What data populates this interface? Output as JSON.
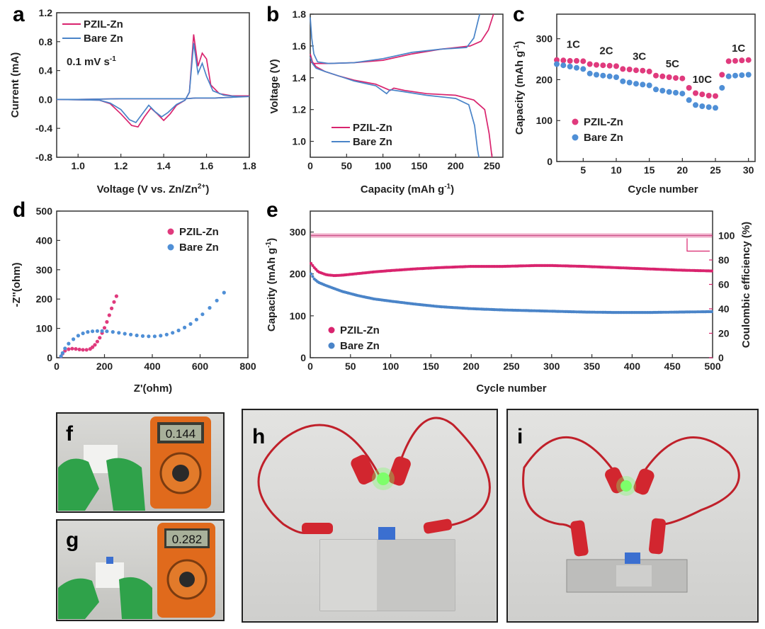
{
  "figure": {
    "panel_labels": [
      "a",
      "b",
      "c",
      "d",
      "e",
      "f",
      "g",
      "h",
      "i"
    ]
  },
  "colors": {
    "pzil": "#d9246e",
    "bare": "#4a84c8",
    "ce": "#d9246e"
  },
  "photos": {
    "f": {
      "meter_reading": "0.144",
      "description_icon": "multimeter-icon"
    },
    "g": {
      "meter_reading": "0.282",
      "description_icon": "multimeter-icon"
    },
    "h": {
      "icon": "pouch-cell-led-icon"
    },
    "i": {
      "icon": "folded-cell-led-icon"
    }
  },
  "chart_data": [
    {
      "id": "a",
      "type": "line",
      "xlabel": "Voltage (V vs. Zn/Zn",
      "xlabel_sup": "2+",
      "xlabel_end": ")",
      "ylabel": "Current (mA)",
      "annotation": "0.1 mV s",
      "annotation_sup": "-1",
      "xlim": [
        0.9,
        1.8
      ],
      "ylim": [
        -0.8,
        1.2
      ],
      "xticks": [
        "1.0",
        "1.2",
        "1.4",
        "1.6",
        "1.8"
      ],
      "yticks": [
        "-0.8",
        "-0.4",
        "0.0",
        "0.4",
        "0.8",
        "1.2"
      ],
      "xtick_values": [
        1.0,
        1.2,
        1.4,
        1.6,
        1.8
      ],
      "ytick_values": [
        -0.8,
        -0.4,
        0.0,
        0.4,
        0.8,
        1.2
      ],
      "series": [
        {
          "name": "PZIL-Zn",
          "color": "#d9246e",
          "x": [
            0.9,
            1.1,
            1.15,
            1.2,
            1.25,
            1.28,
            1.31,
            1.34,
            1.37,
            1.4,
            1.43,
            1.46,
            1.5,
            1.52,
            1.54,
            1.56,
            1.58,
            1.6,
            1.62,
            1.66,
            1.72,
            1.8,
            1.72,
            1.64,
            1.6,
            1.55,
            1.5,
            1.4,
            1.2,
            1.0,
            0.9
          ],
          "y": [
            0.0,
            -0.01,
            -0.06,
            -0.2,
            -0.36,
            -0.38,
            -0.24,
            -0.12,
            -0.2,
            -0.29,
            -0.2,
            -0.08,
            -0.01,
            0.1,
            0.9,
            0.46,
            0.64,
            0.56,
            0.2,
            0.08,
            0.05,
            0.05,
            0.03,
            0.02,
            0.02,
            0.02,
            0.01,
            0.01,
            0.01,
            0.0,
            0.0
          ]
        },
        {
          "name": "Bare Zn",
          "color": "#4a84c8",
          "x": [
            0.9,
            1.1,
            1.15,
            1.2,
            1.24,
            1.27,
            1.3,
            1.33,
            1.36,
            1.39,
            1.42,
            1.46,
            1.5,
            1.52,
            1.54,
            1.56,
            1.58,
            1.6,
            1.63,
            1.68,
            1.74,
            1.8,
            1.72,
            1.64,
            1.6,
            1.55,
            1.5,
            1.4,
            1.2,
            1.0,
            0.9
          ],
          "y": [
            0.0,
            -0.01,
            -0.05,
            -0.14,
            -0.28,
            -0.32,
            -0.2,
            -0.08,
            -0.17,
            -0.24,
            -0.18,
            -0.07,
            -0.01,
            0.1,
            0.78,
            0.36,
            0.5,
            0.32,
            0.12,
            0.06,
            0.04,
            0.04,
            0.03,
            0.02,
            0.02,
            0.02,
            0.01,
            0.01,
            0.01,
            0.0,
            0.0
          ]
        }
      ]
    },
    {
      "id": "b",
      "type": "line",
      "xlabel": "Capacity (mAh g",
      "xlabel_sup": "-1",
      "xlabel_end": ")",
      "ylabel": "Voltage (V)",
      "xlim": [
        0,
        265
      ],
      "ylim": [
        0.9,
        1.8
      ],
      "xticks": [
        "0",
        "50",
        "100",
        "150",
        "200",
        "250"
      ],
      "yticks": [
        "1.0",
        "1.2",
        "1.4",
        "1.6",
        "1.8"
      ],
      "xtick_values": [
        0,
        50,
        100,
        150,
        200,
        250
      ],
      "ytick_values": [
        1.0,
        1.2,
        1.4,
        1.6,
        1.8
      ],
      "series": [
        {
          "name": "PZIL-Zn",
          "color": "#d9246e",
          "charge_x": [
            0,
            5,
            25,
            60,
            100,
            140,
            180,
            220,
            235,
            245,
            252
          ],
          "charge_y": [
            1.5,
            1.49,
            1.49,
            1.495,
            1.51,
            1.55,
            1.58,
            1.6,
            1.63,
            1.7,
            1.8
          ],
          "discharge_x": [
            0,
            3,
            8,
            20,
            40,
            60,
            90,
            110,
            115,
            130,
            160,
            200,
            225,
            240,
            246,
            250
          ],
          "discharge_y": [
            1.55,
            1.5,
            1.47,
            1.44,
            1.41,
            1.385,
            1.36,
            1.32,
            1.335,
            1.32,
            1.3,
            1.29,
            1.26,
            1.2,
            1.05,
            0.9
          ]
        },
        {
          "name": "Bare Zn",
          "color": "#4a84c8",
          "charge_x": [
            0,
            2,
            5,
            10,
            25,
            60,
            100,
            140,
            180,
            215,
            225,
            233
          ],
          "charge_y": [
            1.78,
            1.65,
            1.55,
            1.5,
            1.49,
            1.495,
            1.52,
            1.56,
            1.58,
            1.59,
            1.65,
            1.8
          ],
          "discharge_x": [
            0,
            3,
            8,
            20,
            40,
            60,
            90,
            105,
            110,
            125,
            160,
            200,
            218,
            226,
            230,
            232
          ],
          "discharge_y": [
            1.53,
            1.49,
            1.46,
            1.44,
            1.41,
            1.38,
            1.35,
            1.3,
            1.325,
            1.315,
            1.29,
            1.27,
            1.23,
            1.1,
            0.95,
            0.9
          ]
        }
      ]
    },
    {
      "id": "c",
      "type": "scatter",
      "xlabel": "Cycle number",
      "ylabel": "Capacity (mAh g",
      "ylabel_sup": "-1",
      "ylabel_end": ")",
      "xlim": [
        1,
        31
      ],
      "ylim": [
        0,
        360
      ],
      "xticks": [
        "5",
        "10",
        "15",
        "20",
        "25",
        "30"
      ],
      "yticks": [
        "0",
        "100",
        "200",
        "300"
      ],
      "xtick_values": [
        5,
        10,
        15,
        20,
        25,
        30
      ],
      "ytick_values": [
        0,
        100,
        200,
        300
      ],
      "rate_labels": [
        {
          "text": "1C",
          "x": 3.5,
          "y": 278
        },
        {
          "text": "2C",
          "x": 8.5,
          "y": 262
        },
        {
          "text": "3C",
          "x": 13.5,
          "y": 248
        },
        {
          "text": "5C",
          "x": 18.5,
          "y": 230
        },
        {
          "text": "10C",
          "x": 23.0,
          "y": 192
        },
        {
          "text": "1C",
          "x": 28.5,
          "y": 268
        }
      ],
      "x": [
        1,
        2,
        3,
        4,
        5,
        6,
        7,
        8,
        9,
        10,
        11,
        12,
        13,
        14,
        15,
        16,
        17,
        18,
        19,
        20,
        21,
        22,
        23,
        24,
        25,
        26,
        27,
        28,
        29,
        30
      ],
      "series": [
        {
          "name": "PZIL-Zn",
          "color": "#e03a7d",
          "values": [
            248,
            247,
            246,
            246,
            245,
            238,
            236,
            235,
            234,
            233,
            226,
            225,
            223,
            222,
            220,
            210,
            208,
            206,
            204,
            203,
            180,
            167,
            164,
            161,
            160,
            212,
            245,
            246,
            247,
            248
          ]
        },
        {
          "name": "Bare Zn",
          "color": "#4f8fd6",
          "values": [
            238,
            235,
            232,
            229,
            226,
            215,
            212,
            210,
            208,
            206,
            196,
            193,
            190,
            188,
            186,
            176,
            173,
            170,
            168,
            166,
            150,
            138,
            135,
            133,
            131,
            180,
            208,
            210,
            211,
            212
          ]
        }
      ]
    },
    {
      "id": "d",
      "type": "scatter",
      "xlabel": "Z'(ohm)",
      "ylabel": "-Z''(ohm)",
      "xlim": [
        0,
        800
      ],
      "ylim": [
        0,
        500
      ],
      "xticks": [
        "0",
        "200",
        "400",
        "600",
        "800"
      ],
      "yticks": [
        "0",
        "100",
        "200",
        "300",
        "400",
        "500"
      ],
      "xtick_values": [
        0,
        200,
        400,
        600,
        800
      ],
      "ytick_values": [
        0,
        100,
        200,
        300,
        400,
        500
      ],
      "series": [
        {
          "name": "PZIL-Zn",
          "color": "#e03a7d",
          "x": [
            18,
            25,
            35,
            50,
            65,
            80,
            95,
            110,
            125,
            140,
            150,
            160,
            170,
            180,
            190,
            200,
            210,
            220,
            230,
            240,
            250
          ],
          "y": [
            4,
            14,
            24,
            29,
            31,
            30,
            28,
            27,
            27,
            30,
            36,
            44,
            55,
            68,
            84,
            102,
            122,
            145,
            168,
            190,
            210
          ]
        },
        {
          "name": "Bare Zn",
          "color": "#4f8fd6",
          "x": [
            18,
            25,
            35,
            50,
            70,
            90,
            110,
            130,
            150,
            170,
            190,
            210,
            235,
            260,
            285,
            310,
            335,
            360,
            385,
            410,
            435,
            460,
            485,
            510,
            535,
            560,
            585,
            610,
            640,
            670,
            700
          ],
          "y": [
            5,
            16,
            32,
            48,
            63,
            75,
            83,
            88,
            90,
            91,
            91,
            90,
            88,
            85,
            82,
            79,
            76,
            74,
            73,
            73,
            75,
            79,
            85,
            93,
            103,
            115,
            130,
            148,
            170,
            195,
            222
          ]
        }
      ]
    },
    {
      "id": "e",
      "type": "scatter",
      "xlabel": "Cycle number",
      "ylabel": "Capacity (mAh g",
      "ylabel_sup": "-1",
      "ylabel_end": ")",
      "y2label": "Coulombic efficiency (%)",
      "xlim": [
        0,
        500
      ],
      "ylim": [
        0,
        350
      ],
      "y2lim": [
        0,
        120
      ],
      "xticks": [
        "0",
        "50",
        "100",
        "150",
        "200",
        "250",
        "300",
        "350",
        "400",
        "450",
        "500"
      ],
      "yticks": [
        "0",
        "100",
        "200",
        "300"
      ],
      "y2ticks": [
        "0",
        "20",
        "40",
        "60",
        "80",
        "100"
      ],
      "xtick_values": [
        0,
        50,
        100,
        150,
        200,
        250,
        300,
        350,
        400,
        450,
        500
      ],
      "ytick_values": [
        0,
        100,
        200,
        300
      ],
      "y2tick_values": [
        0,
        20,
        40,
        60,
        80,
        100
      ],
      "coulombic_efficiency": 100,
      "series": [
        {
          "name": "PZIL-Zn",
          "color": "#d9246e",
          "x": [
            1,
            5,
            10,
            20,
            30,
            40,
            60,
            80,
            100,
            130,
            160,
            200,
            240,
            280,
            300,
            340,
            380,
            420,
            460,
            500
          ],
          "y": [
            225,
            215,
            205,
            198,
            196,
            197,
            201,
            205,
            208,
            212,
            215,
            218,
            218,
            220,
            220,
            218,
            215,
            212,
            209,
            207
          ]
        },
        {
          "name": "Bare Zn",
          "color": "#4a84c8",
          "x": [
            1,
            5,
            10,
            20,
            30,
            40,
            60,
            80,
            100,
            130,
            160,
            200,
            240,
            280,
            300,
            340,
            380,
            420,
            460,
            500
          ],
          "y": [
            200,
            188,
            180,
            172,
            165,
            158,
            148,
            140,
            135,
            128,
            122,
            117,
            114,
            112,
            111,
            109,
            108,
            108,
            109,
            110
          ]
        }
      ]
    }
  ]
}
